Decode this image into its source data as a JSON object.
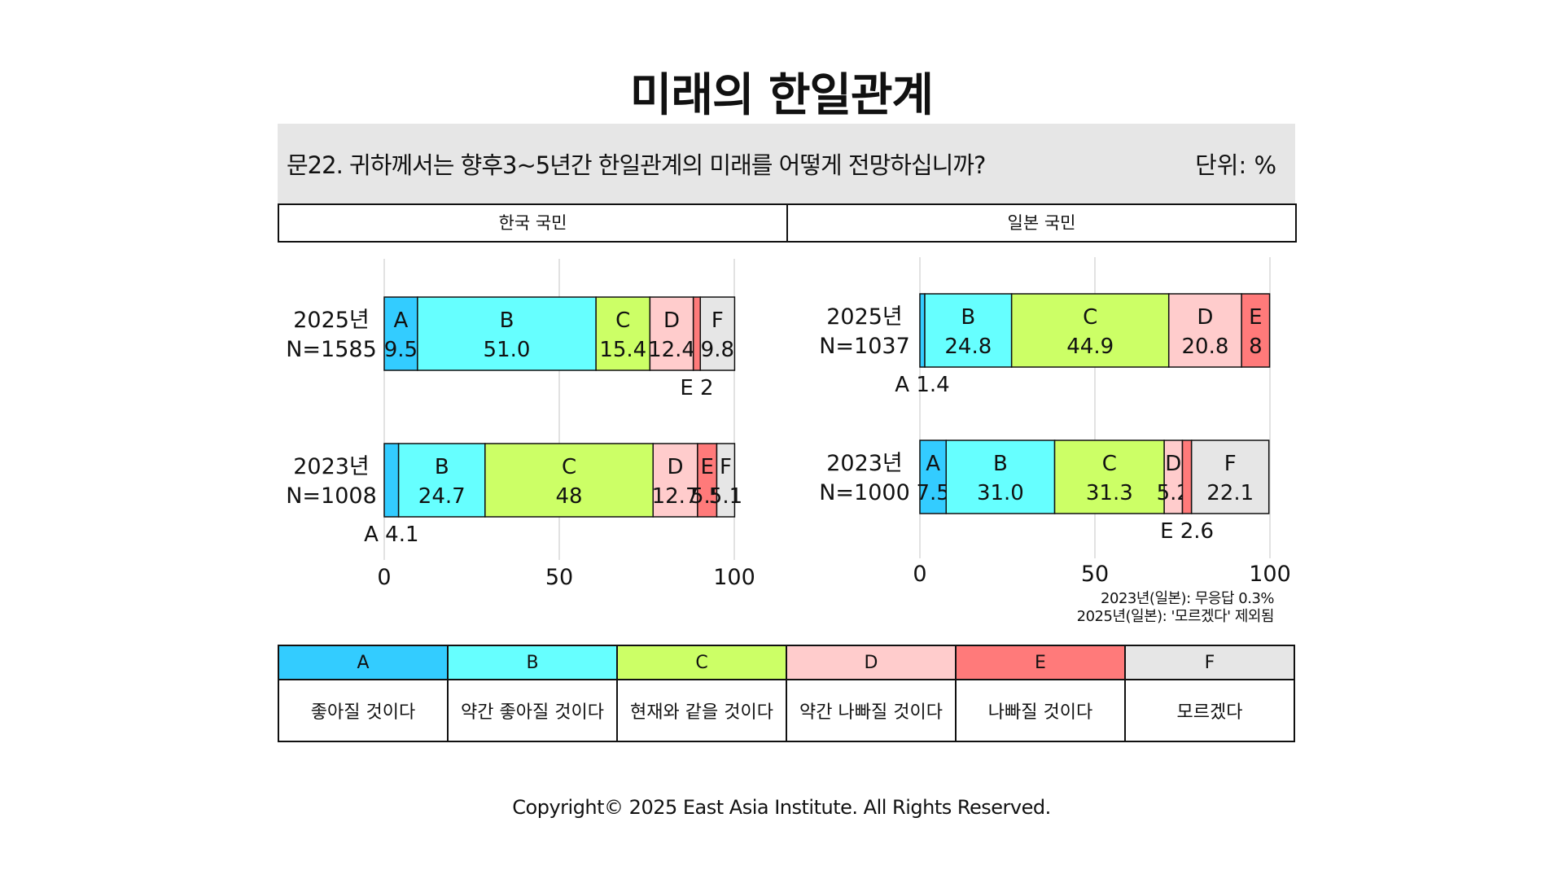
{
  "title": "미래의 한일관계",
  "question": "문22. 귀하께서는 향후3~5년간 한일관계의 미래를 어떻게 전망하십니까?",
  "unit": "단위: %",
  "panels": [
    "한국 국민",
    "일본 국민"
  ],
  "notes": [
    "2023년(일본): 무응답 0.3%",
    "2025년(일본): '모르겠다' 제외됨"
  ],
  "legend": {
    "codes": [
      "A",
      "B",
      "C",
      "D",
      "E",
      "F"
    ],
    "labels": [
      "좋아질 것이다",
      "약간 좋아질 것이다",
      "현재와 같을 것이다",
      "약간 나빠질 것이다",
      "나빠질 것이다",
      "모르겠다"
    ],
    "colors": [
      "#33ccff",
      "#66ffff",
      "#ccff66",
      "#ffcccc",
      "#ff7a7a",
      "#e6e6e6"
    ]
  },
  "copyright": "Copyright© 2025 East Asia Institute. All Rights Reserved.",
  "chart_data": [
    {
      "type": "bar",
      "stacked": true,
      "orientation": "horizontal",
      "panel": "한국 국민",
      "xlim": [
        0,
        100
      ],
      "xticks": [
        0,
        50,
        100
      ],
      "grid": true,
      "categories": [
        "2025년",
        "2023년"
      ],
      "n_labels": [
        "N=1585",
        "N=1008"
      ],
      "series": [
        {
          "name": "A",
          "values": [
            9.5,
            4.1
          ]
        },
        {
          "name": "B",
          "values": [
            51.0,
            24.7
          ]
        },
        {
          "name": "C",
          "values": [
            15.4,
            48
          ]
        },
        {
          "name": "D",
          "values": [
            12.4,
            12.7
          ]
        },
        {
          "name": "E",
          "values": [
            2,
            5.5
          ]
        },
        {
          "name": "F",
          "values": [
            9.8,
            5.1
          ]
        }
      ],
      "value_labels": [
        [
          "9.5",
          "51.0",
          "15.4",
          "12.4",
          "2",
          "9.8"
        ],
        [
          "4.1",
          "24.7",
          "48",
          "12.7",
          "5.5",
          "5.1"
        ]
      ]
    },
    {
      "type": "bar",
      "stacked": true,
      "orientation": "horizontal",
      "panel": "일본 국민",
      "xlim": [
        0,
        100
      ],
      "xticks": [
        0,
        50,
        100
      ],
      "grid": true,
      "categories": [
        "2025년",
        "2023년"
      ],
      "n_labels": [
        "N=1037",
        "N=1000"
      ],
      "series": [
        {
          "name": "A",
          "values": [
            1.4,
            7.5
          ]
        },
        {
          "name": "B",
          "values": [
            24.8,
            31.0
          ]
        },
        {
          "name": "C",
          "values": [
            44.9,
            31.3
          ]
        },
        {
          "name": "D",
          "values": [
            20.8,
            5.2
          ]
        },
        {
          "name": "E",
          "values": [
            8,
            2.6
          ]
        },
        {
          "name": "F",
          "values": [
            0,
            22.1
          ]
        }
      ],
      "value_labels": [
        [
          "1.4",
          "24.8",
          "44.9",
          "20.8",
          "8",
          ""
        ],
        [
          "7.5",
          "31.0",
          "31.3",
          "5.2",
          "2.6",
          "22.1"
        ]
      ]
    }
  ]
}
